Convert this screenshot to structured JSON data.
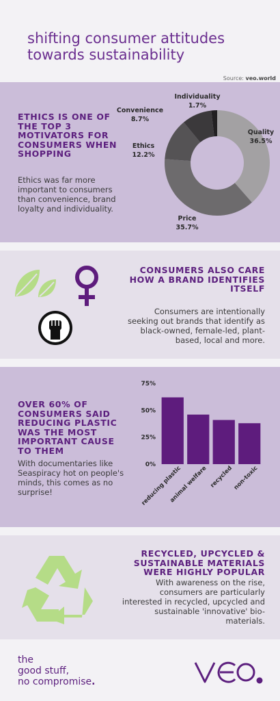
{
  "title_line1": "shifting consumer attitudes",
  "title_line2": "towards sustainability",
  "source": {
    "label": "Source:",
    "value": "veo.world"
  },
  "section1": {
    "heading": "ETHICS IS ONE OF THE TOP 3 MOTIVATORS FOR CONSUMERS WHEN SHOPPING",
    "body": "Ethics was far more important to consumers than convenience, brand loyalty and individuality."
  },
  "section2": {
    "heading": "CONSUMERS ALSO CARE HOW A BRAND IDENTIFIES ITSELF",
    "body": "Consumers are intentionally seeking out brands that identify as black-owned, female-led, plant-based, local and more.",
    "icons": [
      "leaf-icon",
      "female-symbol-icon",
      "raised-fist-icon"
    ]
  },
  "section3": {
    "heading": "OVER 60% OF CONSUMERS SAID REDUCING PLASTIC WAS THE MOST IMPORTANT CAUSE TO THEM",
    "body": "With documentaries like Seaspiracy hot on people's minds, this comes as no surprise!"
  },
  "section4": {
    "heading": "RECYCLED, UPCYCLED & SUSTAINABLE MATERIALS WERE HIGHLY POPULAR",
    "body": "With awareness on the rise, consumers are particularly interested in recycled, upcycled and sustainable 'innovative' bio-materials.",
    "icon": "recycle-icon"
  },
  "footer": {
    "line1": "the",
    "line2": "good stuff,",
    "line3": "no compromise",
    "brand": "veo"
  },
  "colors": {
    "purple": "#5c1f7e",
    "bar": "#5e1c7d",
    "green": "#b5dc87",
    "band": "#cbbdd9"
  },
  "chart_data": [
    {
      "type": "pie",
      "labels": [
        "Quality",
        "Price",
        "Ethics",
        "Convenience",
        "Individuality"
      ],
      "values": [
        36.5,
        35.7,
        12.2,
        8.7,
        1.7
      ],
      "value_labels": [
        "36.5%",
        "35.7%",
        "12.2%",
        "8.7%",
        "1.7%"
      ],
      "colors": [
        "#a3a1a3",
        "#6d6b6d",
        "#555355",
        "#3b393b",
        "#222022"
      ],
      "donut": true
    },
    {
      "type": "bar",
      "categories": [
        "reducing plastic",
        "animal welfare",
        "recycled",
        "non-toxic"
      ],
      "values": [
        62,
        46,
        41,
        38
      ],
      "yticks": [
        "0%",
        "25%",
        "50%",
        "75%"
      ],
      "ylim": [
        0,
        75
      ],
      "grid": false
    }
  ]
}
